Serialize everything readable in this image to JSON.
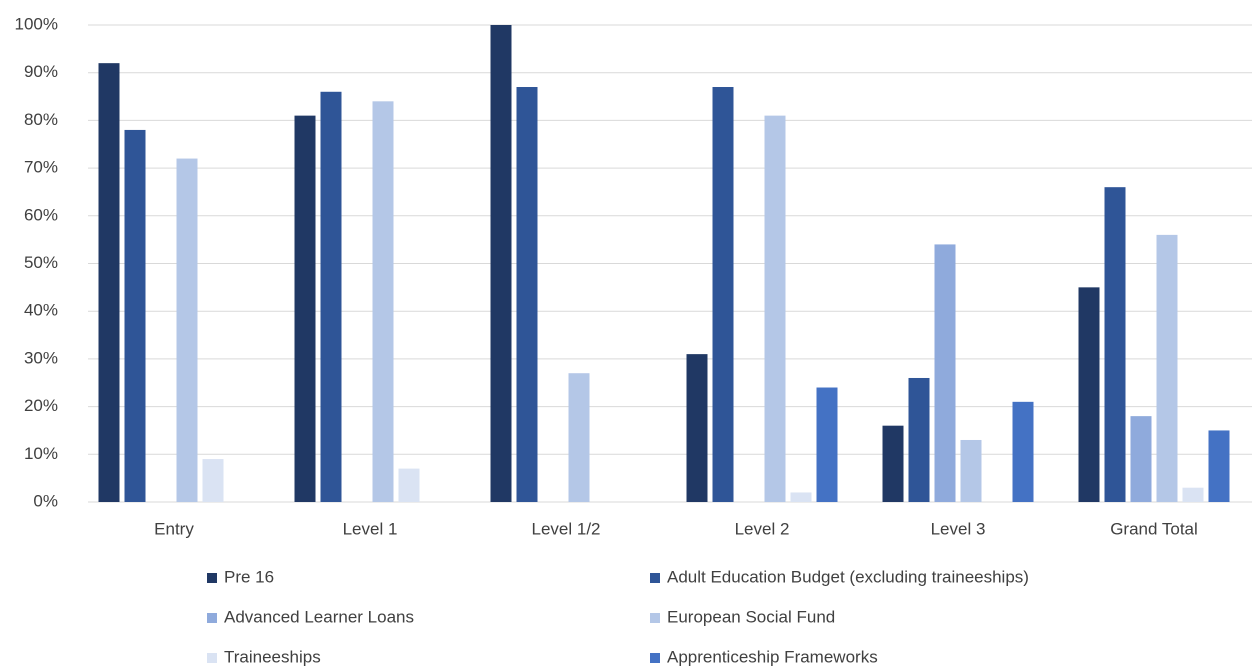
{
  "chart_data": {
    "type": "bar",
    "categories": [
      "Entry",
      "Level 1",
      "Level 1/2",
      "Level 2",
      "Level 3",
      "Grand Total"
    ],
    "series": [
      {
        "name": "Pre 16",
        "color": "#203864",
        "values": [
          92,
          81,
          100,
          31,
          16,
          45
        ]
      },
      {
        "name": "Adult Education Budget (excluding traineeships)",
        "color": "#2f5597",
        "values": [
          78,
          86,
          87,
          87,
          26,
          66
        ]
      },
      {
        "name": "Advanced Learner Loans",
        "color": "#8faadc",
        "values": [
          null,
          null,
          null,
          null,
          54,
          18
        ]
      },
      {
        "name": "European Social Fund",
        "color": "#b4c7e7",
        "values": [
          72,
          84,
          27,
          81,
          13,
          56
        ]
      },
      {
        "name": "Traineeships",
        "color": "#dae3f3",
        "values": [
          9,
          7,
          null,
          2,
          null,
          3
        ]
      },
      {
        "name": "Apprenticeship Frameworks",
        "color": "#4472c4",
        "values": [
          null,
          null,
          null,
          24,
          21,
          15
        ]
      }
    ],
    "ylim": [
      0,
      100
    ],
    "yticks": [
      {
        "value": 0,
        "label": "0%"
      },
      {
        "value": 10,
        "label": "10%"
      },
      {
        "value": 20,
        "label": "20%"
      },
      {
        "value": 30,
        "label": "30%"
      },
      {
        "value": 40,
        "label": "40%"
      },
      {
        "value": 50,
        "label": "50%"
      },
      {
        "value": 60,
        "label": "60%"
      },
      {
        "value": 70,
        "label": "70%"
      },
      {
        "value": 80,
        "label": "80%"
      },
      {
        "value": 90,
        "label": "90%"
      },
      {
        "value": 100,
        "label": "100%"
      }
    ],
    "grid": true,
    "legend": "bottom"
  }
}
